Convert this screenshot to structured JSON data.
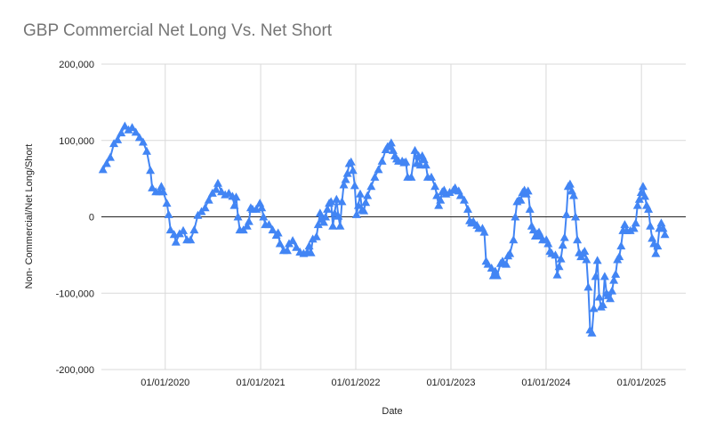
{
  "chart_data": {
    "type": "line",
    "title": "GBP Commercial Net Long Vs. Net Short",
    "xlabel": "Date",
    "ylabel": "Non- Commercial/Net Long/Short",
    "ylim": [
      -200000,
      200000
    ],
    "xlim": [
      "2019-05-01",
      "2025-06-20"
    ],
    "y_ticks": [
      -200000,
      -100000,
      0,
      100000,
      200000
    ],
    "y_tick_labels": [
      "-200,000",
      "-100,000",
      "0",
      "100,000",
      "200,000"
    ],
    "x_ticks": [
      "2020-01-01",
      "2021-01-01",
      "2022-01-01",
      "2023-01-01",
      "2024-01-01",
      "2025-01-01"
    ],
    "x_tick_labels": [
      "01/01/2020",
      "01/01/2021",
      "01/01/2022",
      "01/01/2023",
      "01/01/2024",
      "01/01/2025"
    ],
    "grid": true,
    "marker": "triangle",
    "colors": {
      "series": "#4285f4",
      "grid": "#d9d9d9",
      "zero_line": "#222222"
    },
    "series": [
      {
        "points": [
          [
            "2019-05-07",
            62000
          ],
          [
            "2019-05-21",
            70000
          ],
          [
            "2019-06-04",
            78000
          ],
          [
            "2019-06-18",
            96000
          ],
          [
            "2019-07-02",
            101000
          ],
          [
            "2019-07-16",
            110000
          ],
          [
            "2019-07-30",
            119000
          ],
          [
            "2019-08-13",
            114000
          ],
          [
            "2019-08-27",
            117000
          ],
          [
            "2019-09-10",
            111000
          ],
          [
            "2019-09-24",
            104000
          ],
          [
            "2019-10-08",
            98000
          ],
          [
            "2019-10-22",
            86000
          ],
          [
            "2019-11-05",
            61000
          ],
          [
            "2019-11-12",
            38000
          ],
          [
            "2019-11-26",
            33000
          ],
          [
            "2019-12-10",
            33000
          ],
          [
            "2019-12-17",
            40000
          ],
          [
            "2019-12-24",
            33000
          ],
          [
            "2020-01-07",
            18000
          ],
          [
            "2020-01-14",
            3000
          ],
          [
            "2020-01-21",
            -17000
          ],
          [
            "2020-02-04",
            -23000
          ],
          [
            "2020-02-11",
            -33000
          ],
          [
            "2020-02-25",
            -22000
          ],
          [
            "2020-03-10",
            -18000
          ],
          [
            "2020-03-24",
            -30000
          ],
          [
            "2020-04-07",
            -30000
          ],
          [
            "2020-04-21",
            -17000
          ],
          [
            "2020-05-05",
            2000
          ],
          [
            "2020-05-19",
            7000
          ],
          [
            "2020-06-02",
            12000
          ],
          [
            "2020-06-16",
            22000
          ],
          [
            "2020-06-30",
            31000
          ],
          [
            "2020-07-14",
            36000
          ],
          [
            "2020-07-21",
            44000
          ],
          [
            "2020-08-04",
            33000
          ],
          [
            "2020-08-18",
            29000
          ],
          [
            "2020-09-01",
            31000
          ],
          [
            "2020-09-15",
            27000
          ],
          [
            "2020-09-22",
            15000
          ],
          [
            "2020-09-29",
            26000
          ],
          [
            "2020-10-06",
            0
          ],
          [
            "2020-10-13",
            -17000
          ],
          [
            "2020-10-27",
            -17000
          ],
          [
            "2020-11-10",
            -12000
          ],
          [
            "2020-11-17",
            -6000
          ],
          [
            "2020-11-24",
            12000
          ],
          [
            "2020-12-01",
            10000
          ],
          [
            "2020-12-15",
            10000
          ],
          [
            "2020-12-29",
            18000
          ],
          [
            "2021-01-05",
            12000
          ],
          [
            "2021-01-12",
            0
          ],
          [
            "2021-01-19",
            -10000
          ],
          [
            "2021-02-02",
            -10000
          ],
          [
            "2021-02-16",
            -17000
          ],
          [
            "2021-03-02",
            -24000
          ],
          [
            "2021-03-09",
            -21000
          ],
          [
            "2021-03-16",
            -35000
          ],
          [
            "2021-03-30",
            -44000
          ],
          [
            "2021-04-13",
            -44000
          ],
          [
            "2021-04-20",
            -35000
          ],
          [
            "2021-05-04",
            -31000
          ],
          [
            "2021-05-18",
            -40000
          ],
          [
            "2021-06-01",
            -46000
          ],
          [
            "2021-06-15",
            -48000
          ],
          [
            "2021-06-29",
            -46000
          ],
          [
            "2021-07-06",
            -38000
          ],
          [
            "2021-07-13",
            -47000
          ],
          [
            "2021-07-20",
            -29000
          ],
          [
            "2021-08-03",
            -26000
          ],
          [
            "2021-08-10",
            -10000
          ],
          [
            "2021-08-17",
            5000
          ],
          [
            "2021-08-24",
            -3000
          ],
          [
            "2021-08-31",
            -7000
          ],
          [
            "2021-09-07",
            0
          ],
          [
            "2021-09-14",
            10000
          ],
          [
            "2021-09-21",
            18000
          ],
          [
            "2021-09-28",
            20000
          ],
          [
            "2021-10-05",
            -12000
          ],
          [
            "2021-10-12",
            5000
          ],
          [
            "2021-10-19",
            23000
          ],
          [
            "2021-10-26",
            1000
          ],
          [
            "2021-11-02",
            -12000
          ],
          [
            "2021-11-09",
            20000
          ],
          [
            "2021-11-16",
            42000
          ],
          [
            "2021-11-23",
            49000
          ],
          [
            "2021-11-30",
            57000
          ],
          [
            "2021-12-07",
            70000
          ],
          [
            "2021-12-14",
            72000
          ],
          [
            "2021-12-21",
            61000
          ],
          [
            "2021-12-28",
            41000
          ],
          [
            "2022-01-04",
            3000
          ],
          [
            "2022-01-11",
            15000
          ],
          [
            "2022-01-18",
            30000
          ],
          [
            "2022-01-25",
            9000
          ],
          [
            "2022-02-01",
            8000
          ],
          [
            "2022-02-08",
            19000
          ],
          [
            "2022-02-15",
            28000
          ],
          [
            "2022-03-01",
            40000
          ],
          [
            "2022-03-15",
            52000
          ],
          [
            "2022-03-29",
            62000
          ],
          [
            "2022-04-12",
            73000
          ],
          [
            "2022-04-26",
            88000
          ],
          [
            "2022-05-03",
            92000
          ],
          [
            "2022-05-10",
            93000
          ],
          [
            "2022-05-17",
            97000
          ],
          [
            "2022-05-24",
            87000
          ],
          [
            "2022-05-31",
            80000
          ],
          [
            "2022-06-07",
            76000
          ],
          [
            "2022-06-14",
            73000
          ],
          [
            "2022-06-28",
            73000
          ],
          [
            "2022-07-05",
            71000
          ],
          [
            "2022-07-12",
            72000
          ],
          [
            "2022-07-19",
            52000
          ],
          [
            "2022-08-02",
            52000
          ],
          [
            "2022-08-16",
            87000
          ],
          [
            "2022-08-23",
            70000
          ],
          [
            "2022-08-30",
            80000
          ],
          [
            "2022-09-06",
            68000
          ],
          [
            "2022-09-13",
            80000
          ],
          [
            "2022-09-20",
            75000
          ],
          [
            "2022-09-27",
            68000
          ],
          [
            "2022-10-04",
            52000
          ],
          [
            "2022-10-18",
            52000
          ],
          [
            "2022-11-01",
            40000
          ],
          [
            "2022-11-08",
            28000
          ],
          [
            "2022-11-15",
            15000
          ],
          [
            "2022-11-22",
            22000
          ],
          [
            "2022-11-29",
            33000
          ],
          [
            "2022-12-06",
            35000
          ],
          [
            "2022-12-13",
            30000
          ],
          [
            "2022-12-27",
            32000
          ],
          [
            "2023-01-10",
            35000
          ],
          [
            "2023-01-17",
            38000
          ],
          [
            "2023-01-31",
            34000
          ],
          [
            "2023-02-07",
            28000
          ],
          [
            "2023-02-21",
            22000
          ],
          [
            "2023-03-07",
            10000
          ],
          [
            "2023-03-14",
            -5000
          ],
          [
            "2023-03-21",
            -8000
          ],
          [
            "2023-03-28",
            -6000
          ],
          [
            "2023-04-11",
            -11000
          ],
          [
            "2023-04-18",
            -15000
          ],
          [
            "2023-05-02",
            -15000
          ],
          [
            "2023-05-09",
            -20000
          ],
          [
            "2023-05-16",
            -58000
          ],
          [
            "2023-05-23",
            -62000
          ],
          [
            "2023-06-06",
            -67000
          ],
          [
            "2023-06-13",
            -77000
          ],
          [
            "2023-06-20",
            -71000
          ],
          [
            "2023-06-27",
            -77000
          ],
          [
            "2023-07-11",
            -61000
          ],
          [
            "2023-07-18",
            -58000
          ],
          [
            "2023-08-01",
            -62000
          ],
          [
            "2023-08-08",
            -51000
          ],
          [
            "2023-08-15",
            -48000
          ],
          [
            "2023-08-29",
            -30000
          ],
          [
            "2023-09-05",
            0
          ],
          [
            "2023-09-12",
            20000
          ],
          [
            "2023-09-19",
            22000
          ],
          [
            "2023-09-26",
            22000
          ],
          [
            "2023-10-03",
            32000
          ],
          [
            "2023-10-10",
            35000
          ],
          [
            "2023-10-17",
            30000
          ],
          [
            "2023-10-24",
            34000
          ],
          [
            "2023-10-31",
            10000
          ],
          [
            "2023-11-07",
            -12000
          ],
          [
            "2023-11-14",
            -17000
          ],
          [
            "2023-11-21",
            -25000
          ],
          [
            "2023-11-28",
            -22000
          ],
          [
            "2023-12-05",
            -20000
          ],
          [
            "2023-12-12",
            -25000
          ],
          [
            "2023-12-19",
            -30000
          ],
          [
            "2024-01-02",
            -30000
          ],
          [
            "2024-01-09",
            -35000
          ],
          [
            "2024-01-16",
            -45000
          ],
          [
            "2024-01-23",
            -48000
          ],
          [
            "2024-02-06",
            -50000
          ],
          [
            "2024-02-13",
            -76000
          ],
          [
            "2024-02-20",
            -65000
          ],
          [
            "2024-02-27",
            -55000
          ],
          [
            "2024-03-05",
            -37000
          ],
          [
            "2024-03-12",
            -27000
          ],
          [
            "2024-03-19",
            3000
          ],
          [
            "2024-03-26",
            40000
          ],
          [
            "2024-04-02",
            43000
          ],
          [
            "2024-04-09",
            34000
          ],
          [
            "2024-04-16",
            28000
          ],
          [
            "2024-04-23",
            0
          ],
          [
            "2024-04-30",
            -30000
          ],
          [
            "2024-05-07",
            -47000
          ],
          [
            "2024-05-14",
            -52000
          ],
          [
            "2024-05-21",
            -48000
          ],
          [
            "2024-05-28",
            -45000
          ],
          [
            "2024-06-04",
            -56000
          ],
          [
            "2024-06-11",
            -92000
          ],
          [
            "2024-06-18",
            -148000
          ],
          [
            "2024-06-25",
            -152000
          ],
          [
            "2024-07-02",
            -120000
          ],
          [
            "2024-07-09",
            -78000
          ],
          [
            "2024-07-16",
            -57000
          ],
          [
            "2024-07-23",
            -105000
          ],
          [
            "2024-07-30",
            -118000
          ],
          [
            "2024-08-06",
            -115000
          ],
          [
            "2024-08-13",
            -78000
          ],
          [
            "2024-08-20",
            -100000
          ],
          [
            "2024-08-27",
            -103000
          ],
          [
            "2024-09-03",
            -107000
          ],
          [
            "2024-09-10",
            -97000
          ],
          [
            "2024-09-17",
            -83000
          ],
          [
            "2024-09-24",
            -75000
          ],
          [
            "2024-10-01",
            -56000
          ],
          [
            "2024-10-08",
            -52000
          ],
          [
            "2024-10-15",
            -38000
          ],
          [
            "2024-10-22",
            -18000
          ],
          [
            "2024-10-29",
            -10000
          ],
          [
            "2024-11-05",
            -18000
          ],
          [
            "2024-11-19",
            -18000
          ],
          [
            "2024-12-03",
            -15000
          ],
          [
            "2024-12-10",
            -8000
          ],
          [
            "2024-12-17",
            15000
          ],
          [
            "2024-12-24",
            23000
          ],
          [
            "2024-12-31",
            32000
          ],
          [
            "2025-01-07",
            40000
          ],
          [
            "2025-01-14",
            27000
          ],
          [
            "2025-01-21",
            15000
          ],
          [
            "2025-01-28",
            10000
          ],
          [
            "2025-02-04",
            -12000
          ],
          [
            "2025-02-11",
            -28000
          ],
          [
            "2025-02-18",
            -35000
          ],
          [
            "2025-02-25",
            -48000
          ],
          [
            "2025-03-04",
            -38000
          ],
          [
            "2025-03-11",
            -15000
          ],
          [
            "2025-03-18",
            -8000
          ],
          [
            "2025-03-25",
            -15000
          ],
          [
            "2025-04-01",
            -23000
          ]
        ]
      }
    ]
  }
}
